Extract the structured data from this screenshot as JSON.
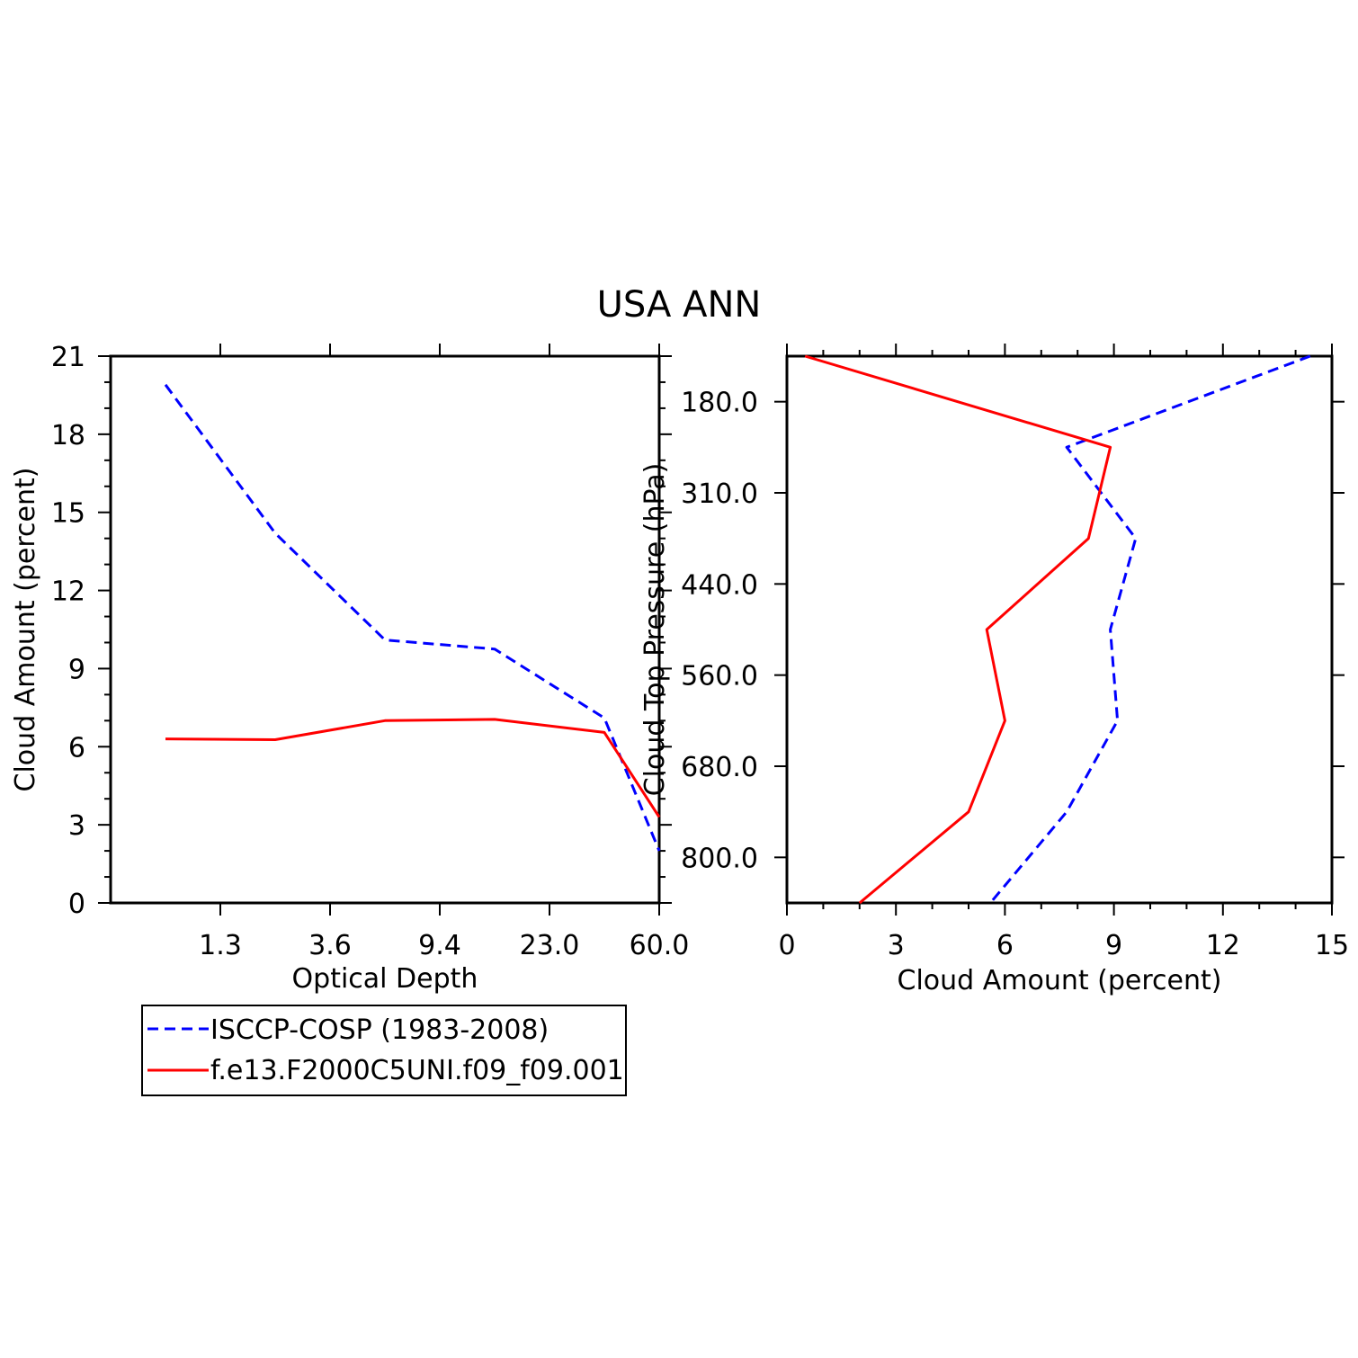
{
  "title": "USA ANN",
  "chart_data": [
    {
      "type": "line",
      "xlabel": "Optical Depth",
      "ylabel": "Cloud Amount (percent)",
      "x_tick_labels": [
        "1.3",
        "3.6",
        "9.4",
        "23.0",
        "60.0"
      ],
      "y_tick_labels": [
        "0",
        "3",
        "6",
        "9",
        "12",
        "15",
        "18",
        "21"
      ],
      "ylim": [
        0,
        21
      ],
      "x": [
        0.5,
        1.5,
        2.5,
        3.5,
        4.5,
        5.0
      ],
      "series": [
        {
          "name": "ISCCP-COSP (1983-2008)",
          "color": "#0000ff",
          "dash": "dashed",
          "values": [
            19.9,
            14.2,
            10.1,
            9.75,
            7.1,
            2.0
          ]
        },
        {
          "name": "f.e13.F2000C5UNI.f09_f09.001",
          "color": "#ff0000",
          "dash": "solid",
          "values": [
            6.3,
            6.27,
            7.0,
            7.05,
            6.55,
            3.3
          ]
        }
      ]
    },
    {
      "type": "line",
      "xlabel": "Cloud Amount (percent)",
      "ylabel": "Cloud Top Pressure (hPa)",
      "x_tick_labels": [
        "0",
        "3",
        "6",
        "9",
        "12",
        "15"
      ],
      "xlim": [
        0,
        15
      ],
      "y_tick_labels": [
        "180.0",
        "310.0",
        "440.0",
        "560.0",
        "680.0",
        "800.0"
      ],
      "y": [
        0,
        1,
        2,
        3,
        4,
        5,
        6
      ],
      "series": [
        {
          "name": "ISCCP-COSP (1983-2008)",
          "color": "#0000ff",
          "dash": "dashed",
          "values": [
            14.4,
            7.7,
            9.6,
            8.9,
            9.1,
            7.7,
            5.6
          ]
        },
        {
          "name": "f.e13.F2000C5UNI.f09_f09.001",
          "color": "#ff0000",
          "dash": "solid",
          "values": [
            0.5,
            8.9,
            8.3,
            5.5,
            6.0,
            5.0,
            2.0
          ]
        }
      ]
    }
  ],
  "legend": {
    "entries": [
      "ISCCP-COSP (1983-2008)",
      "f.e13.F2000C5UNI.f09_f09.001"
    ]
  }
}
